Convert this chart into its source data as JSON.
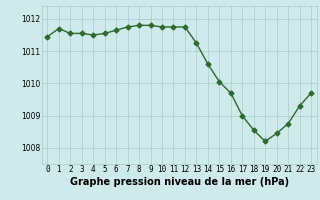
{
  "x": [
    0,
    1,
    2,
    3,
    4,
    5,
    6,
    7,
    8,
    9,
    10,
    11,
    12,
    13,
    14,
    15,
    16,
    17,
    18,
    19,
    20,
    21,
    22,
    23
  ],
  "y": [
    1011.45,
    1011.7,
    1011.55,
    1011.55,
    1011.5,
    1011.55,
    1011.65,
    1011.75,
    1011.8,
    1011.8,
    1011.75,
    1011.75,
    1011.75,
    1011.25,
    1010.6,
    1010.05,
    1009.7,
    1009.0,
    1008.55,
    1008.2,
    1008.45,
    1008.75,
    1009.3,
    1009.7
  ],
  "line_color": "#2d6a2d",
  "marker": "D",
  "markersize": 2.5,
  "linewidth": 1.0,
  "bg_color": "#ceeaea",
  "grid_color": "#aacaca",
  "xlabel": "Graphe pression niveau de la mer (hPa)",
  "xlabel_fontsize": 7,
  "ytick_labels": [
    "1008",
    "1009",
    "1010",
    "1011",
    "1012"
  ],
  "ytick_values": [
    1008,
    1009,
    1010,
    1011,
    1012
  ],
  "ylim": [
    1007.5,
    1012.4
  ],
  "xlim": [
    -0.5,
    23.5
  ],
  "tick_fontsize": 5.5,
  "xtick_labels": [
    "0",
    "1",
    "2",
    "3",
    "4",
    "5",
    "6",
    "7",
    "8",
    "9",
    "10",
    "11",
    "12",
    "13",
    "14",
    "15",
    "16",
    "17",
    "18",
    "19",
    "20",
    "21",
    "22",
    "23"
  ]
}
